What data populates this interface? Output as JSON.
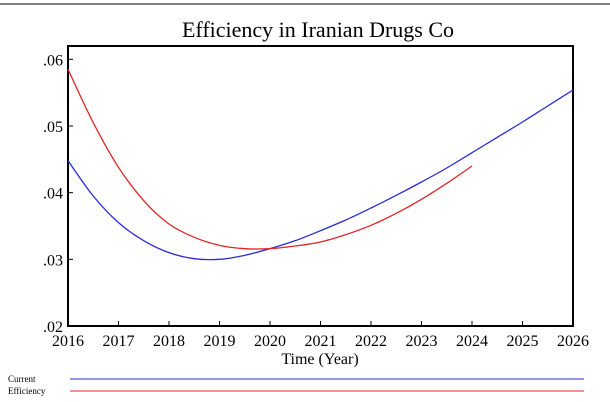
{
  "chart_data": {
    "type": "line",
    "title": "Efficiency in Iranian Drugs Co",
    "xlabel": "Time (Year)",
    "ylabel": "",
    "xlim": [
      2016,
      2026
    ],
    "ylim": [
      0.02,
      0.062
    ],
    "x_ticks": [
      "2016",
      "2017",
      "2018",
      "2019",
      "2020",
      "2021",
      "2022",
      "2023",
      "2024",
      "2025",
      "2026"
    ],
    "x_tick_values": [
      2016,
      2017,
      2018,
      2019,
      2020,
      2021,
      2022,
      2023,
      2024,
      2025,
      2026
    ],
    "y_ticks": [
      ".02",
      ".03",
      ".04",
      ".05",
      ".06"
    ],
    "y_tick_values": [
      0.02,
      0.03,
      0.04,
      0.05,
      0.06
    ],
    "grid": false,
    "legend": "bottom-left",
    "series": [
      {
        "name": "Current",
        "color": "#2a2ad6",
        "x": [
          2016,
          2016.5,
          2017,
          2017.5,
          2018,
          2018.5,
          2019,
          2019.5,
          2020,
          2020.5,
          2021,
          2021.5,
          2022,
          2022.5,
          2023,
          2023.5,
          2024,
          2024.5,
          2025,
          2025.5,
          2026
        ],
        "y": [
          0.0448,
          0.0395,
          0.0355,
          0.0328,
          0.031,
          0.0301,
          0.03,
          0.0306,
          0.0316,
          0.0328,
          0.0343,
          0.0359,
          0.0377,
          0.0396,
          0.0416,
          0.0437,
          0.046,
          0.0483,
          0.0506,
          0.053,
          0.0554
        ]
      },
      {
        "name": "Efficiency",
        "color": "#e02424",
        "x": [
          2016,
          2016.5,
          2017,
          2017.5,
          2018,
          2018.5,
          2019,
          2019.5,
          2020,
          2020.5,
          2021,
          2021.5,
          2022,
          2022.5,
          2023,
          2023.5,
          2024
        ],
        "y": [
          0.0585,
          0.0505,
          0.0438,
          0.0388,
          0.0353,
          0.0333,
          0.0321,
          0.0316,
          0.0316,
          0.032,
          0.0326,
          0.0337,
          0.0351,
          0.0369,
          0.039,
          0.0414,
          0.044
        ]
      }
    ]
  }
}
